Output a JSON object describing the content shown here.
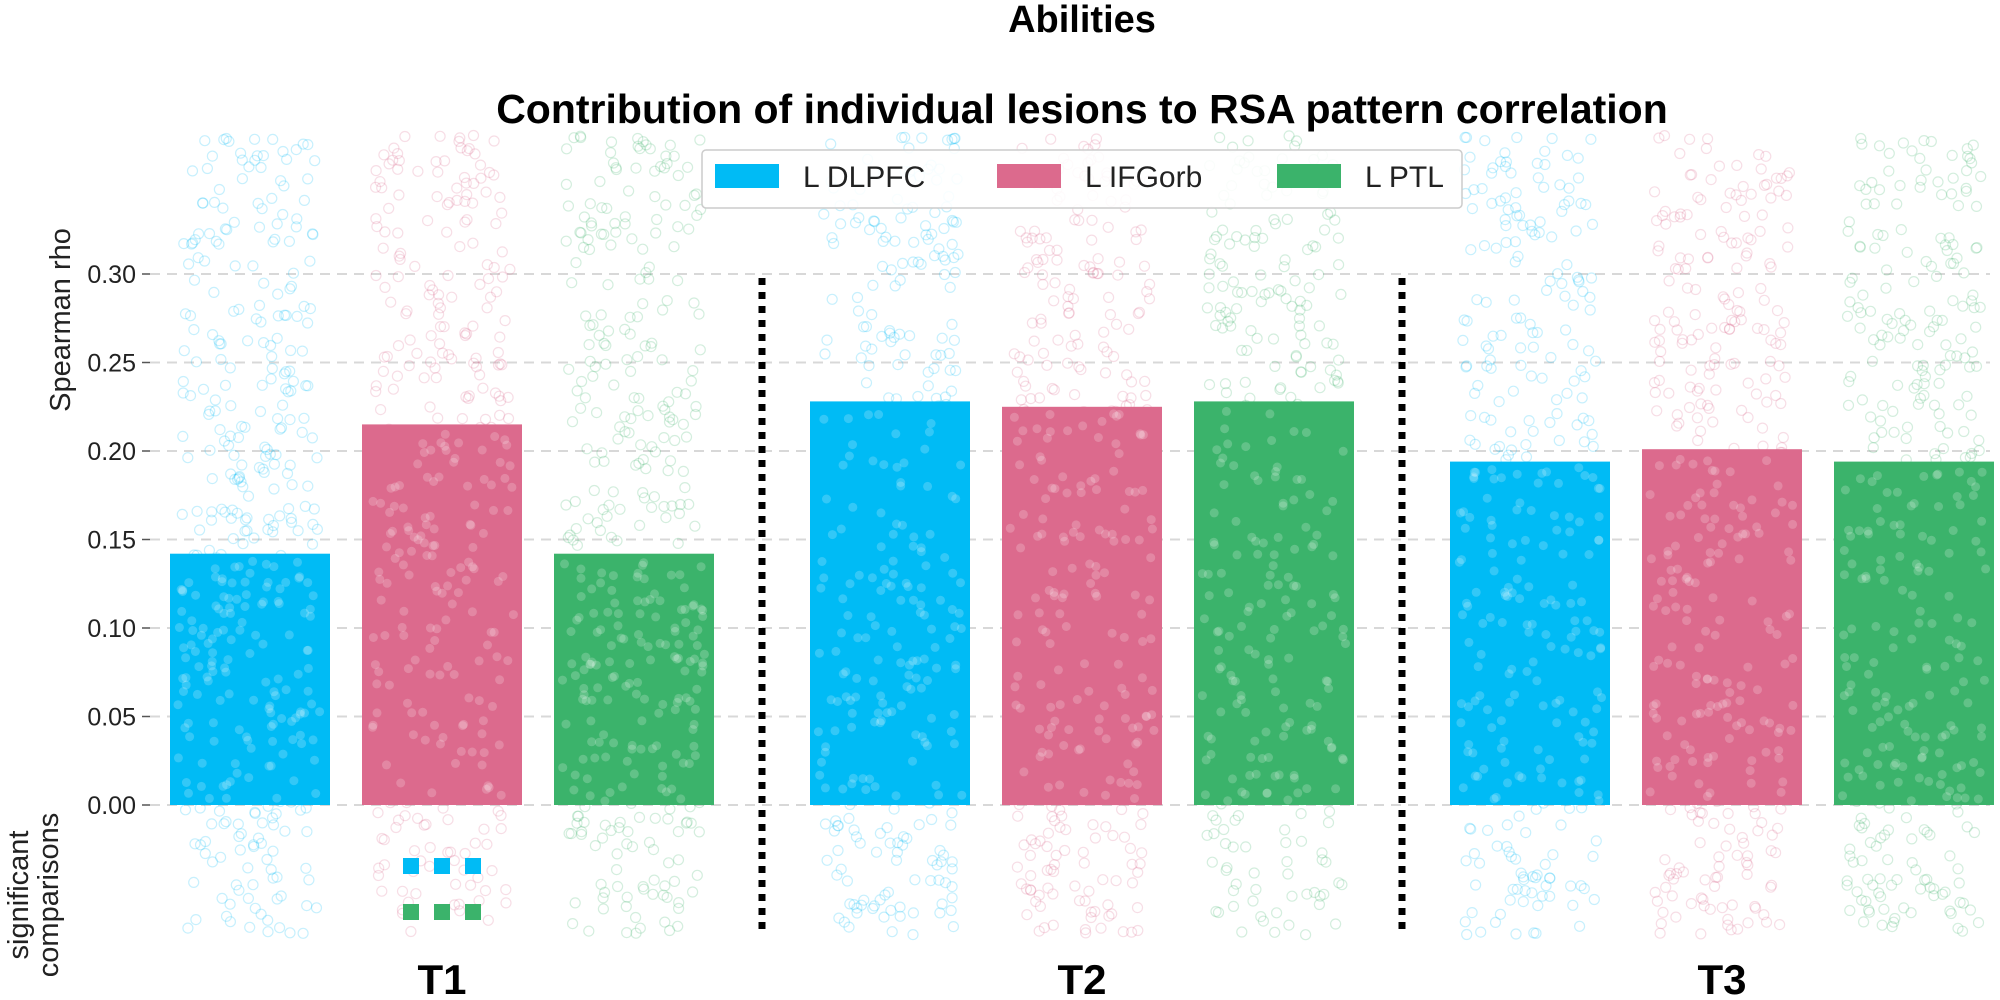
{
  "chart_data": {
    "type": "bar",
    "suptitle": "Abilities",
    "title": "Contribution of individual lesions to RSA pattern correlation",
    "ylabel": "Spearman rho",
    "sig_label": [
      "significant",
      "comparisons"
    ],
    "ylim": [
      0.0,
      0.3
    ],
    "yticks": [
      "0.00",
      "0.05",
      "0.10",
      "0.15",
      "0.20",
      "0.25",
      "0.30"
    ],
    "grid": true,
    "legend_position": "top-center",
    "categories": [
      "T1",
      "T2",
      "T3"
    ],
    "series": [
      {
        "name": "L DLPFC",
        "color": "#00bbf5",
        "values": [
          0.142,
          0.228,
          0.194
        ]
      },
      {
        "name": "L IFGorb",
        "color": "#dc6a8d",
        "values": [
          0.215,
          0.225,
          0.201
        ]
      },
      {
        "name": "L PTL",
        "color": "#3bb36b",
        "values": [
          0.142,
          0.228,
          0.194
        ]
      }
    ],
    "significant_comparisons": [
      {
        "group": "T1",
        "marker_color": "#00bbf5",
        "count": 3
      },
      {
        "group": "T1",
        "marker_color": "#3bb36b",
        "count": 3
      }
    ]
  }
}
